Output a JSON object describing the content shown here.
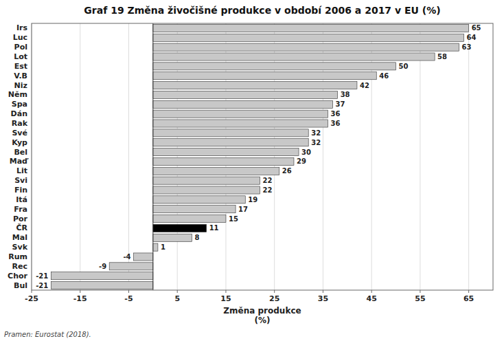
{
  "chart_data": {
    "type": "bar",
    "orientation": "horizontal",
    "title": "Graf 19 Změna živočišné produkce v období 2006 a 2017 v EU (%)",
    "xlabel": [
      "Změna produkce",
      "(%)"
    ],
    "source": "Pramen: Eurostat (2018).",
    "categories": [
      "Irs",
      "Luc",
      "Pol",
      "Lot",
      "Est",
      "V.B",
      "Niz",
      "Něm",
      "Spa",
      "Dán",
      "Rak",
      "Své",
      "Kyp",
      "Bel",
      "Maď",
      "Lit",
      "Svi",
      "Fin",
      "Itá",
      "Fra",
      "Por",
      "ČR",
      "Mal",
      "Svk",
      "Rum",
      "Rec",
      "Chor",
      "Bul"
    ],
    "values": [
      65,
      64,
      63,
      58,
      50,
      46,
      42,
      38,
      37,
      36,
      36,
      32,
      32,
      30,
      29,
      26,
      22,
      22,
      19,
      17,
      15,
      11,
      8,
      1,
      -4,
      -9,
      -21,
      -21
    ],
    "colors": [
      "#c8c8c8",
      "#c8c8c8",
      "#c8c8c8",
      "#c8c8c8",
      "#c8c8c8",
      "#c8c8c8",
      "#c8c8c8",
      "#c8c8c8",
      "#c8c8c8",
      "#c8c8c8",
      "#c8c8c8",
      "#c8c8c8",
      "#c8c8c8",
      "#c8c8c8",
      "#c8c8c8",
      "#c8c8c8",
      "#c8c8c8",
      "#c8c8c8",
      "#c8c8c8",
      "#c8c8c8",
      "#c8c8c8",
      "#000000",
      "#c8c8c8",
      "#c8c8c8",
      "#c8c8c8",
      "#c8c8c8",
      "#c8c8c8",
      "#c8c8c8"
    ],
    "xlim": [
      -25,
      70
    ],
    "xticks": [
      -25,
      -15,
      -5,
      5,
      15,
      25,
      35,
      45,
      55,
      65
    ],
    "grid": true,
    "data_labels": true
  }
}
